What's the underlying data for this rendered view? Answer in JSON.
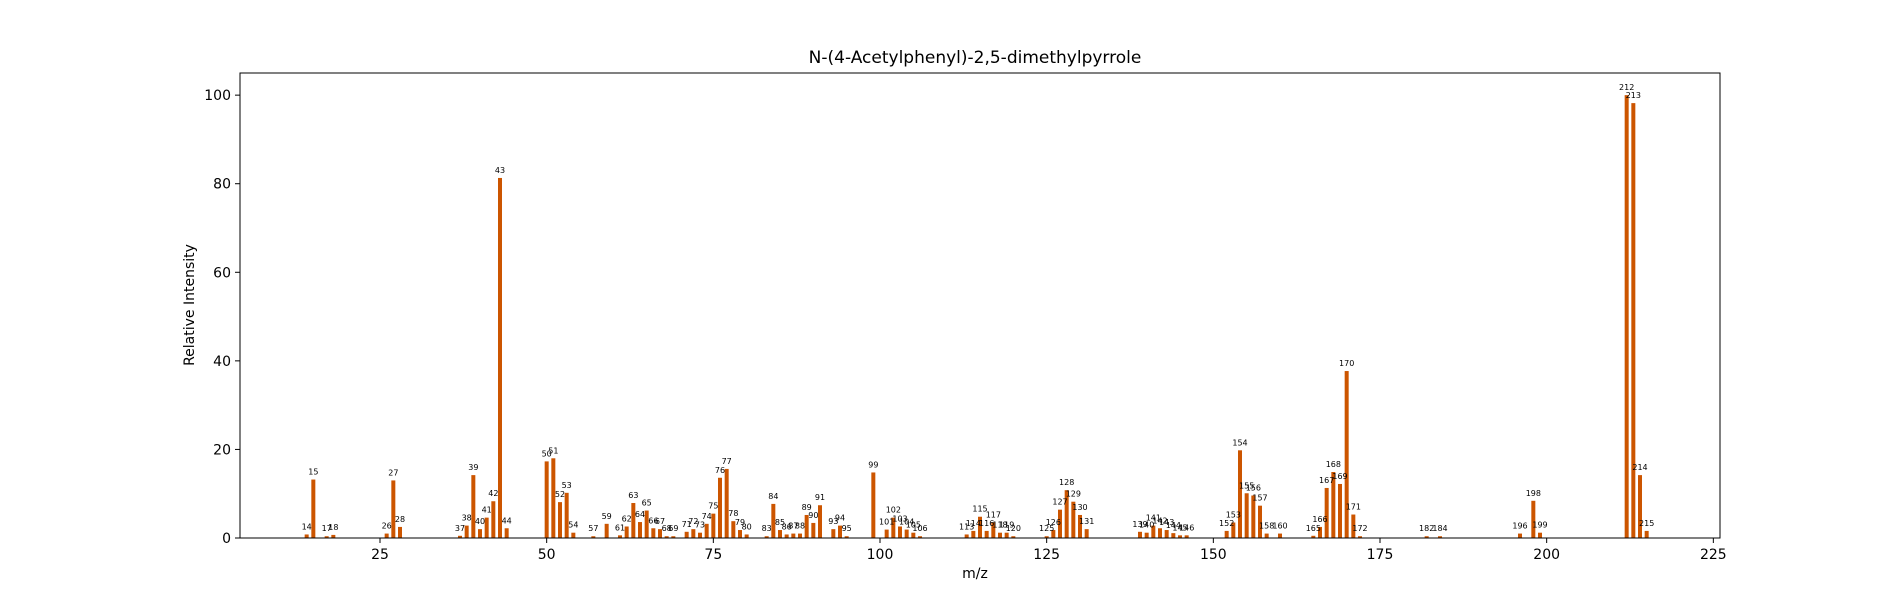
{
  "chart_data": {
    "type": "bar",
    "title": "N-(4-Acetylphenyl)-2,5-dimethylpyrrole",
    "xlabel": "m/z",
    "ylabel": "Relative Intensity",
    "xlim": [
      4,
      226
    ],
    "ylim": [
      0,
      105
    ],
    "xticks": [
      25,
      50,
      75,
      100,
      125,
      150,
      175,
      200,
      225
    ],
    "yticks": [
      0,
      20,
      40,
      60,
      80,
      100
    ],
    "grid": false,
    "bar_color": "#cc5500",
    "x": [
      14,
      15,
      17,
      18,
      26,
      27,
      28,
      37,
      38,
      39,
      40,
      41,
      42,
      43,
      44,
      50,
      51,
      52,
      53,
      54,
      57,
      59,
      61,
      62,
      63,
      64,
      65,
      66,
      67,
      68,
      69,
      71,
      72,
      73,
      74,
      75,
      76,
      77,
      78,
      79,
      80,
      83,
      84,
      85,
      86,
      87,
      88,
      89,
      90,
      91,
      93,
      94,
      95,
      99,
      101,
      102,
      103,
      104,
      105,
      106,
      113,
      114,
      115,
      116,
      117,
      118,
      119,
      120,
      125,
      126,
      127,
      128,
      129,
      130,
      131,
      139,
      140,
      141,
      142,
      143,
      144,
      145,
      146,
      152,
      153,
      154,
      155,
      156,
      157,
      158,
      160,
      165,
      166,
      167,
      168,
      169,
      170,
      171,
      172,
      182,
      184,
      196,
      198,
      199,
      212,
      213,
      214,
      215
    ],
    "y": [
      0.8,
      13.2,
      0.4,
      0.7,
      1.0,
      13.0,
      2.5,
      0.5,
      2.8,
      14.2,
      2.0,
      4.6,
      8.3,
      81.3,
      2.2,
      17.3,
      18.0,
      8.1,
      10.2,
      1.2,
      0.4,
      3.2,
      0.6,
      2.6,
      7.9,
      3.6,
      6.2,
      2.2,
      2.0,
      0.4,
      0.4,
      1.4,
      2.0,
      1.2,
      3.2,
      5.5,
      13.6,
      15.6,
      3.8,
      1.8,
      0.8,
      0.4,
      7.7,
      1.8,
      0.8,
      1.0,
      1.0,
      5.2,
      3.4,
      7.4,
      2.0,
      2.8,
      0.4,
      14.8,
      1.9,
      4.6,
      2.6,
      1.9,
      1.2,
      0.4,
      0.8,
      1.6,
      4.8,
      1.6,
      3.5,
      1.2,
      1.2,
      0.4,
      0.4,
      1.8,
      6.4,
      10.8,
      8.2,
      5.2,
      2.0,
      1.4,
      1.2,
      2.8,
      2.2,
      1.8,
      1.1,
      0.6,
      0.6,
      1.6,
      3.5,
      19.8,
      10.1,
      9.6,
      7.3,
      1.0,
      1.0,
      0.5,
      2.5,
      11.3,
      14.9,
      12.2,
      37.7,
      5.3,
      0.4,
      0.4,
      0.4,
      1.0,
      8.4,
      1.2,
      100,
      98.2,
      14.2,
      1.6
    ],
    "labels": [
      "14",
      "15",
      "17",
      "18",
      "26",
      "27",
      "28",
      "37",
      "38",
      "39",
      "40",
      "41",
      "42",
      "43",
      "44",
      "50",
      "51",
      "52",
      "53",
      "54",
      "57",
      "59",
      "61",
      "62",
      "63",
      "64",
      "65",
      "66",
      "67",
      "68",
      "69",
      "71",
      "72",
      "73",
      "74",
      "75",
      "76",
      "77",
      "78",
      "79",
      "80",
      "83",
      "84",
      "85",
      "86",
      "87",
      "88",
      "89",
      "90",
      "91",
      "93",
      "94",
      "95",
      "99",
      "101",
      "102",
      "103",
      "104",
      "105",
      "106",
      "113",
      "114",
      "115",
      "116",
      "117",
      "118",
      "119",
      "120",
      "125",
      "126",
      "127",
      "128",
      "129",
      "130",
      "131",
      "139",
      "140",
      "141",
      "142",
      "143",
      "144",
      "145",
      "146",
      "152",
      "153",
      "154",
      "155",
      "156",
      "157",
      "158",
      "160",
      "165",
      "166",
      "167",
      "168",
      "169",
      "170",
      "171",
      "172",
      "182",
      "184",
      "196",
      "198",
      "199",
      "212",
      "213",
      "214",
      "215"
    ]
  }
}
